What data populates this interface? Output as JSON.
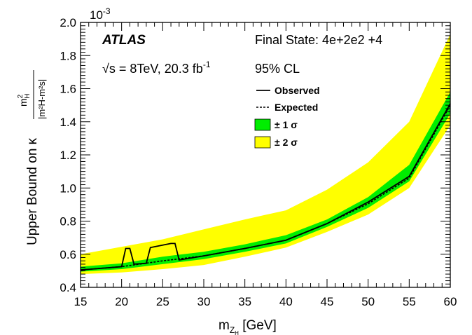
{
  "colors": {
    "band2sigma": "#ffff00",
    "band1sigma": "#00ee00",
    "observed": "#000000",
    "expected": "#000000"
  },
  "chart_data": {
    "type": "line",
    "title": "",
    "xlabel_main": "m",
    "xlabel_sub": "Z",
    "xlabel_subsub": "H",
    "xlabel_unit": " [GeV]",
    "ylabel": "Upper Bound on κ",
    "ylabel_frac_num": "m",
    "ylabel_frac_num_sup": "2",
    "ylabel_frac_num_sub": "H",
    "ylabel_frac_den": "|m²H-m²s|",
    "y_exponent": "10",
    "y_exponent_power": "-3",
    "xlim": [
      15,
      60
    ],
    "ylim": [
      0.4,
      2.0
    ],
    "xticks": [
      "15",
      "20",
      "25",
      "30",
      "35",
      "40",
      "45",
      "50",
      "55",
      "60"
    ],
    "yticks": [
      "0.4",
      "0.6",
      "0.8",
      "1.0",
      "1.2",
      "1.4",
      "1.6",
      "1.8",
      "2.0"
    ],
    "annotations": {
      "atlas": "ATLAS",
      "final_state": "Final State: 4e+2e2  +4",
      "energy_prefix": "√s = 8TeV, 20.3 fb",
      "energy_sup": "-1",
      "cl": "95% CL"
    },
    "legend": {
      "placement": "top-right",
      "entries": [
        {
          "label": "Observed",
          "style": "solid"
        },
        {
          "label": "Expected",
          "style": "dashed"
        },
        {
          "label": "± 1 σ",
          "style": "band1"
        },
        {
          "label": "± 2 σ",
          "style": "band2"
        }
      ]
    },
    "series": [
      {
        "name": "Observed",
        "x": [
          15,
          20,
          20.5,
          21,
          21.5,
          23,
          23.5,
          25,
          26,
          26.5,
          27,
          30,
          35,
          40,
          45,
          50,
          55,
          60
        ],
        "values": [
          0.505,
          0.525,
          0.635,
          0.635,
          0.54,
          0.545,
          0.64,
          0.655,
          0.665,
          0.665,
          0.565,
          0.59,
          0.635,
          0.685,
          0.785,
          0.915,
          1.07,
          1.51
        ]
      },
      {
        "name": "Expected",
        "x": [
          15,
          20,
          25,
          30,
          35,
          40,
          45,
          50,
          55,
          60
        ],
        "values": [
          0.505,
          0.525,
          0.56,
          0.59,
          0.635,
          0.685,
          0.785,
          0.905,
          1.06,
          1.5
        ]
      }
    ],
    "band1": {
      "x": [
        15,
        20,
        25,
        30,
        35,
        40,
        45,
        50,
        55,
        60
      ],
      "lower": [
        0.495,
        0.51,
        0.54,
        0.57,
        0.615,
        0.665,
        0.765,
        0.88,
        1.04,
        1.45
      ],
      "upper": [
        0.525,
        0.545,
        0.585,
        0.615,
        0.66,
        0.715,
        0.81,
        0.945,
        1.14,
        1.58
      ]
    },
    "band2": {
      "x": [
        15,
        20,
        25,
        30,
        35,
        40,
        45,
        50,
        55,
        60
      ],
      "lower": [
        0.48,
        0.49,
        0.51,
        0.535,
        0.585,
        0.64,
        0.735,
        0.84,
        1.0,
        1.38
      ],
      "upper": [
        0.6,
        0.645,
        0.69,
        0.75,
        0.81,
        0.865,
        0.99,
        1.155,
        1.4,
        1.93
      ]
    }
  }
}
